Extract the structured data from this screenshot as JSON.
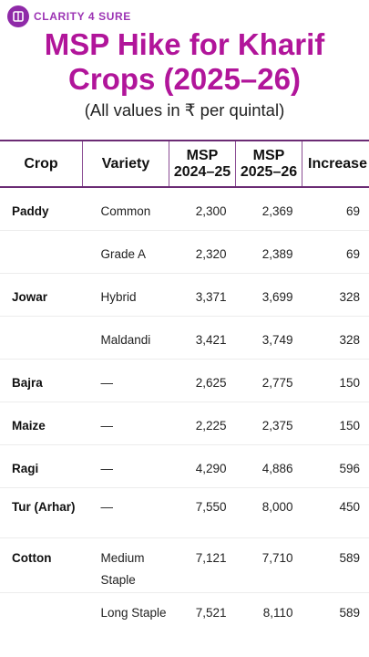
{
  "brand": {
    "name": "CLARITY 4 SURE",
    "icon": "book-icon"
  },
  "title": "MSP Hike for Kharif Crops (2025–26)",
  "subtitle": "(All values in ₹ per quintal)",
  "table": {
    "headers": {
      "crop": "Crop",
      "variety": "Variety",
      "msp_prev_l1": "MSP",
      "msp_prev_l2": "2024–25",
      "msp_new_l1": "MSP",
      "msp_new_l2": "2025–26",
      "increase": "Increase"
    },
    "rows": [
      {
        "crop": "Paddy",
        "variety": "Common",
        "msp_2024_25": "2,300",
        "msp_2025_26": "2,369",
        "increase": "69"
      },
      {
        "crop": "",
        "variety": "Grade A",
        "msp_2024_25": "2,320",
        "msp_2025_26": "2,389",
        "increase": "69"
      },
      {
        "crop": "Jowar",
        "variety": "Hybrid",
        "msp_2024_25": "3,371",
        "msp_2025_26": "3,699",
        "increase": "328"
      },
      {
        "crop": "",
        "variety": "Maldandi",
        "msp_2024_25": "3,421",
        "msp_2025_26": "3,749",
        "increase": "328"
      },
      {
        "crop": "Bajra",
        "variety": "—",
        "msp_2024_25": "2,625",
        "msp_2025_26": "2,775",
        "increase": "150"
      },
      {
        "crop": "Maize",
        "variety": "—",
        "msp_2024_25": "2,225",
        "msp_2025_26": "2,375",
        "increase": "150"
      },
      {
        "crop": "Ragi",
        "variety": "—",
        "msp_2024_25": "4,290",
        "msp_2025_26": "4,886",
        "increase": "596"
      },
      {
        "crop": "Tur (Arhar)",
        "variety": "—",
        "msp_2024_25": "7,550",
        "msp_2025_26": "8,000",
        "increase": "450"
      },
      {
        "crop": "Cotton",
        "variety": "Medium Staple",
        "msp_2024_25": "7,121",
        "msp_2025_26": "7,710",
        "increase": "589"
      },
      {
        "crop": "",
        "variety": "Long Staple",
        "msp_2024_25": "7,521",
        "msp_2025_26": "8,110",
        "increase": "589"
      }
    ]
  }
}
